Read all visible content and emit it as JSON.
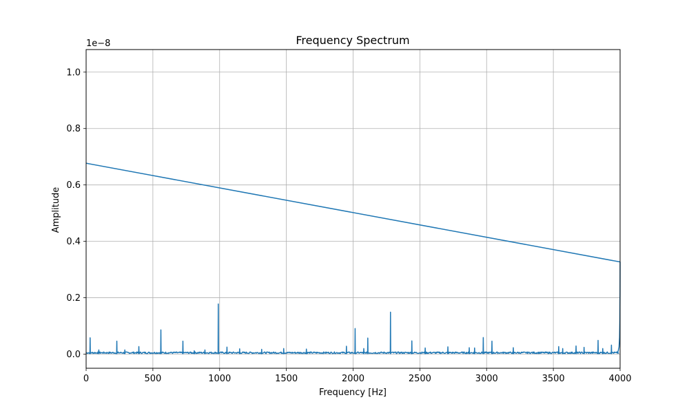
{
  "chart_data": {
    "type": "line",
    "title": "Frequency Spectrum",
    "xlabel": "Frequency [Hz]",
    "ylabel": "Amplitude",
    "y_offset_text": "1e−8",
    "xlim": [
      0,
      4000
    ],
    "ylim": [
      -0.05,
      1.08
    ],
    "y_scale_note": "values in units of 1e-8",
    "grid": true,
    "x_ticks": [
      0,
      500,
      1000,
      1500,
      2000,
      2500,
      3000,
      3500,
      4000
    ],
    "x_tick_labels": [
      "0",
      "500",
      "1000",
      "1500",
      "2000",
      "2500",
      "3000",
      "3500",
      "4000"
    ],
    "y_ticks": [
      0.0,
      0.2,
      0.4,
      0.6,
      0.8,
      1.0
    ],
    "y_tick_labels": [
      "0.0",
      "0.2",
      "0.4",
      "0.6",
      "0.8",
      "1.0"
    ],
    "line_color": "#1f77b4",
    "series": [
      {
        "baseline": 0.002,
        "wrap_line": {
          "x": [
            4000,
            0
          ],
          "y": [
            0.327,
            0.677
          ]
        },
        "peaks": [
          {
            "x": 30,
            "y": 0.058
          },
          {
            "x": 95,
            "y": 0.015
          },
          {
            "x": 230,
            "y": 0.046
          },
          {
            "x": 290,
            "y": 0.015
          },
          {
            "x": 395,
            "y": 0.027
          },
          {
            "x": 560,
            "y": 0.086
          },
          {
            "x": 725,
            "y": 0.046
          },
          {
            "x": 810,
            "y": 0.012
          },
          {
            "x": 890,
            "y": 0.015
          },
          {
            "x": 990,
            "y": 0.178
          },
          {
            "x": 1055,
            "y": 0.025
          },
          {
            "x": 1150,
            "y": 0.019
          },
          {
            "x": 1315,
            "y": 0.017
          },
          {
            "x": 1480,
            "y": 0.02
          },
          {
            "x": 1650,
            "y": 0.018
          },
          {
            "x": 1950,
            "y": 0.028
          },
          {
            "x": 2015,
            "y": 0.091
          },
          {
            "x": 2080,
            "y": 0.02
          },
          {
            "x": 2110,
            "y": 0.057
          },
          {
            "x": 2280,
            "y": 0.149
          },
          {
            "x": 2440,
            "y": 0.047
          },
          {
            "x": 2540,
            "y": 0.022
          },
          {
            "x": 2710,
            "y": 0.026
          },
          {
            "x": 2870,
            "y": 0.023
          },
          {
            "x": 2910,
            "y": 0.022
          },
          {
            "x": 2975,
            "y": 0.059
          },
          {
            "x": 3040,
            "y": 0.046
          },
          {
            "x": 3200,
            "y": 0.023
          },
          {
            "x": 3540,
            "y": 0.027
          },
          {
            "x": 3570,
            "y": 0.02
          },
          {
            "x": 3670,
            "y": 0.029
          },
          {
            "x": 3730,
            "y": 0.024
          },
          {
            "x": 3835,
            "y": 0.049
          },
          {
            "x": 3870,
            "y": 0.02
          },
          {
            "x": 3935,
            "y": 0.032
          }
        ]
      }
    ]
  }
}
